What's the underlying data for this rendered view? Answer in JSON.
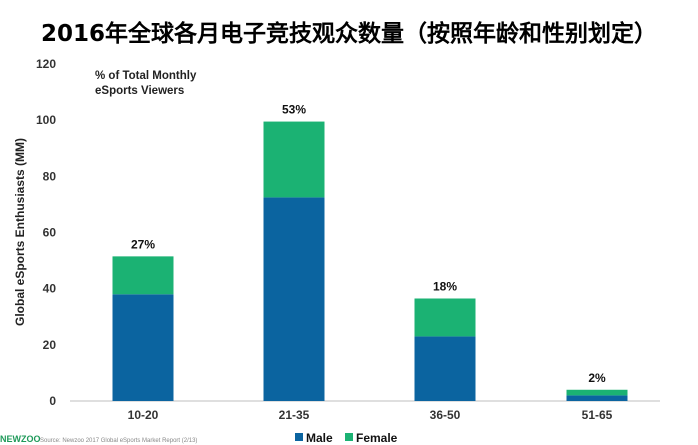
{
  "title": "2016年全球各月电子竞技观众数量（按照年龄和性别划定）",
  "chart_data": {
    "type": "bar",
    "stacked": true,
    "categories": [
      "10-20",
      "21-35",
      "36-50",
      "51-65"
    ],
    "series": [
      {
        "name": "Male",
        "color": "#0b64a0",
        "values": [
          38,
          72.5,
          23,
          2
        ]
      },
      {
        "name": "Female",
        "color": "#1bb273",
        "values": [
          13.5,
          27,
          13.5,
          2
        ]
      }
    ],
    "percent_labels": [
      "27%",
      "53%",
      "18%",
      "2%"
    ],
    "ylabel": "Global eSports Enthusiasts (MM)",
    "ylim": [
      0,
      120
    ],
    "yticks": [
      0,
      20,
      40,
      60,
      80,
      100,
      120
    ],
    "annotation": {
      "line1": "% of Total Monthly",
      "line2": "eSports Viewers"
    },
    "legend_position": "bottom",
    "grid": false
  },
  "source": "Source: Newzoo 2017 Global eSports Market Report (2/13)",
  "brand": "NEWZOO"
}
